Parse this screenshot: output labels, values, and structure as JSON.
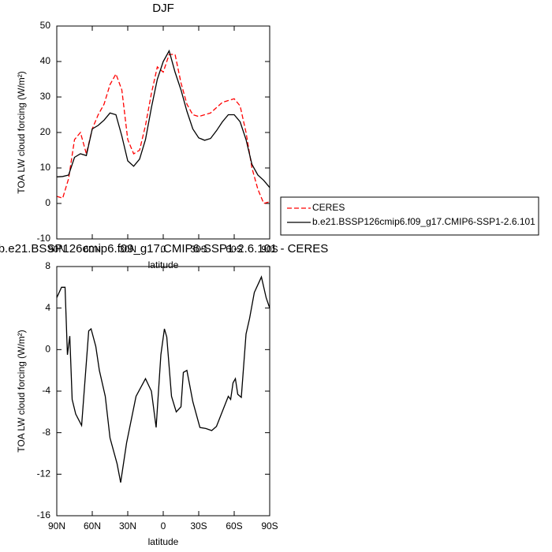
{
  "chart_data": [
    {
      "type": "line",
      "title": "DJF",
      "xlabel": "latitude",
      "ylabel": "TOA LW cloud forcing (W/m²)",
      "x": [
        90,
        85,
        80,
        75,
        70,
        65,
        60,
        55,
        50,
        45,
        40,
        35,
        30,
        25,
        20,
        15,
        10,
        5,
        0,
        -5,
        -10,
        -15,
        -20,
        -25,
        -30,
        -35,
        -40,
        -45,
        -50,
        -55,
        -60,
        -65,
        -70,
        -75,
        -80,
        -85,
        -90
      ],
      "xlim": [
        90,
        -90
      ],
      "xticks": [
        {
          "value": 90,
          "label": "90N"
        },
        {
          "value": 60,
          "label": "60N"
        },
        {
          "value": 30,
          "label": "30N"
        },
        0,
        {
          "value": -30,
          "label": "30S"
        },
        {
          "value": -60,
          "label": "60S"
        },
        {
          "value": -90,
          "label": "90S"
        }
      ],
      "ylim": [
        -10,
        50
      ],
      "yticks": [
        -10,
        0,
        10,
        20,
        30,
        40,
        50
      ],
      "legend": "right",
      "series": [
        {
          "name": "CERES",
          "color": "#ff0000",
          "dashed": true,
          "values": [
            2,
            1.5,
            7,
            18,
            20,
            14,
            21,
            25,
            28,
            33.5,
            36.5,
            32,
            18,
            14,
            15,
            22,
            31,
            38.5,
            37,
            42,
            42,
            34,
            28,
            25,
            24.5,
            25,
            25.5,
            27,
            28.5,
            29,
            29.5,
            27.5,
            20,
            10,
            4,
            0,
            0.5
          ]
        },
        {
          "name": "b.e21.BSSP126cmip6.f09_g17.CMIP6-SSP1-2.6.101",
          "color": "#000000",
          "dashed": false,
          "values": [
            7.5,
            7.6,
            8,
            13,
            14,
            13.5,
            21,
            22,
            23.5,
            25.5,
            25,
            19,
            12,
            10.5,
            12.5,
            18,
            27,
            35,
            40,
            43,
            37,
            32,
            26,
            21,
            18.5,
            17.8,
            18.3,
            20.5,
            23,
            25,
            25,
            23,
            18,
            11,
            8,
            6.5,
            4.5
          ]
        }
      ]
    },
    {
      "type": "line",
      "title": "b.e21.BSSP126cmip6.f09_g17.CMIP6-SSP1-2.6.101 - CERES",
      "xlabel": "latitude",
      "ylabel": "TOA LW cloud forcing (W/m²)",
      "x": [
        90,
        86,
        83,
        81,
        79,
        77,
        74,
        69,
        63,
        61,
        57,
        54,
        49,
        45,
        39,
        36,
        31,
        23,
        15,
        10,
        6,
        2,
        -1,
        -3,
        -7,
        -11,
        -15,
        -17,
        -20,
        -25,
        -31,
        -36,
        -41,
        -45,
        -55,
        -57,
        -59,
        -61,
        -63,
        -66,
        -70,
        -73,
        -77,
        -81,
        -83,
        -87,
        -90
      ],
      "xlim": [
        90,
        -90
      ],
      "xticks": [
        {
          "value": 90,
          "label": "90N"
        },
        {
          "value": 60,
          "label": "60N"
        },
        {
          "value": 30,
          "label": "30N"
        },
        0,
        {
          "value": -30,
          "label": "30S"
        },
        {
          "value": -60,
          "label": "60S"
        },
        {
          "value": -90,
          "label": "90S"
        }
      ],
      "ylim": [
        -16,
        8
      ],
      "yticks": [
        -16,
        -12,
        -8,
        -4,
        0,
        4,
        8
      ],
      "series": [
        {
          "color": "#000000",
          "dashed": false,
          "values": [
            5,
            6,
            6,
            -0.5,
            1.3,
            -4.8,
            -6.2,
            -7.3,
            1.8,
            2,
            0.3,
            -2,
            -4.5,
            -8.5,
            -11,
            -12.8,
            -9,
            -4.5,
            -2.8,
            -4,
            -7.5,
            -0.5,
            2,
            1.2,
            -4.5,
            -6,
            -5.5,
            -2.2,
            -2,
            -5,
            -7.5,
            -7.6,
            -7.8,
            -7.4,
            -4.5,
            -4.8,
            -3.2,
            -2.8,
            -4.3,
            -4.6,
            1.5,
            3,
            5.5,
            6.5,
            7,
            5,
            4
          ]
        }
      ]
    }
  ]
}
